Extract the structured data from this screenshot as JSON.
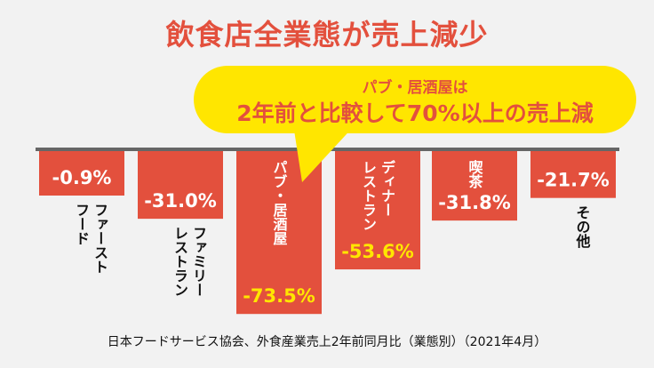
{
  "title": "飲食店全業態が売上減少",
  "callout": {
    "line1": "パブ・居酒屋は",
    "line2": "2年前と比較して70%以上の売上減"
  },
  "source_note": "日本フードサービス協会、外食産業売上2年前同月比（業態別）（2021年4月）",
  "colors": {
    "bar": "#e3503d",
    "title": "#e3503d",
    "callout_fill": "#ffe600",
    "callout_text": "#e3503d",
    "bar_label_light": "#ffffff",
    "bar_label_yellow": "#ffe600",
    "baseline": "#666666"
  },
  "chart_data": {
    "type": "bar",
    "title": "飲食店全業態が売上減少",
    "categories": [
      "ファースト\nフード",
      "ファミリー\nレストラン",
      "パブ・居酒屋",
      "ディナー\nレストラン",
      "喫茶",
      "その他"
    ],
    "values": [
      -0.9,
      -31.0,
      -73.5,
      -53.6,
      -31.8,
      -21.7
    ],
    "value_labels": [
      "-0.9%",
      "-31.0%",
      "-73.5%",
      "-53.6%",
      "-31.8%",
      "-21.7%"
    ],
    "unit": "%",
    "ylim": [
      -80,
      0
    ],
    "grid": false,
    "legend": "none"
  }
}
